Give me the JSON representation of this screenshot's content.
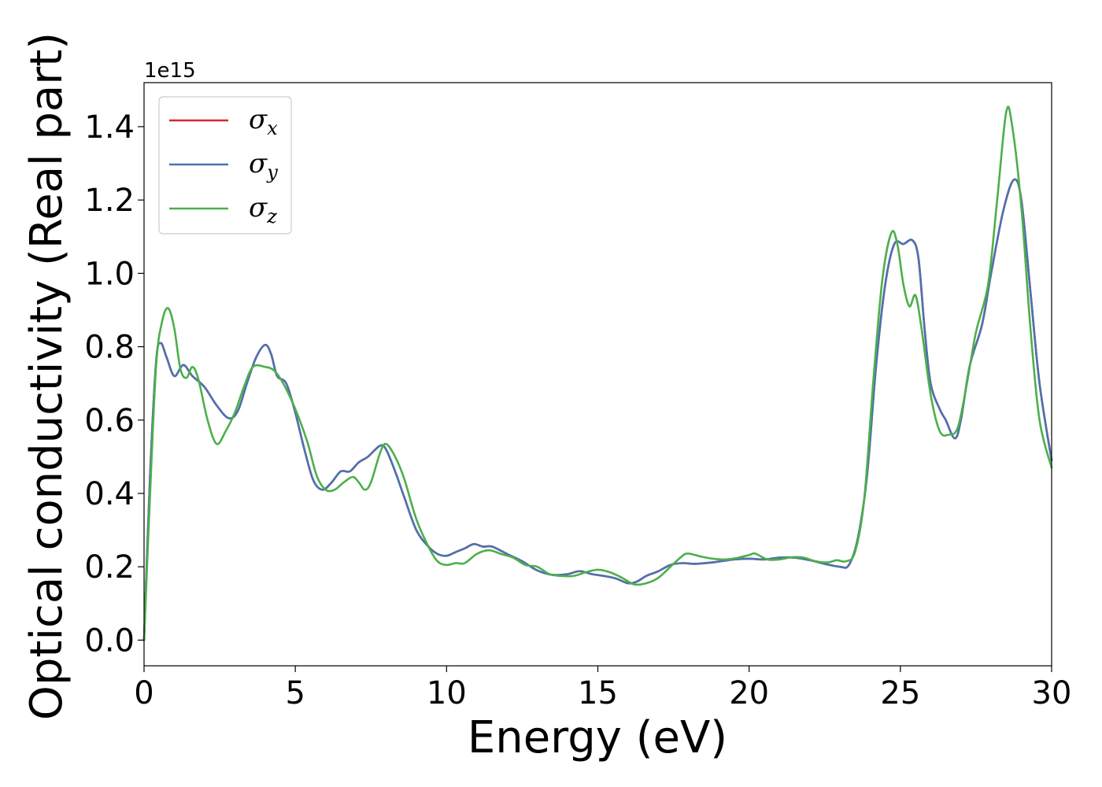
{
  "chart_data": {
    "type": "line",
    "xlabel": "Energy (eV)",
    "ylabel": "Optical conductivity (Real part)",
    "y_offset_label": "1e15",
    "xlim": [
      0,
      30
    ],
    "ylim": [
      -0.07,
      1.52
    ],
    "x_ticks": [
      0,
      5,
      10,
      15,
      20,
      25,
      30
    ],
    "x_tick_labels": [
      "0",
      "5",
      "10",
      "15",
      "20",
      "25",
      "30"
    ],
    "y_ticks": [
      0.0,
      0.2,
      0.4,
      0.6,
      0.8,
      1.0,
      1.2,
      1.4
    ],
    "y_tick_labels": [
      "0.0",
      "0.2",
      "0.4",
      "0.6",
      "0.8",
      "1.0",
      "1.2",
      "1.4"
    ],
    "grid": false,
    "legend_position": "top-left",
    "series": [
      {
        "name": "σ",
        "subscript": "x",
        "color": "#d62728",
        "points": [
          [
            0,
            0.0
          ],
          [
            0.2,
            0.45
          ],
          [
            0.4,
            0.76
          ],
          [
            0.55,
            0.81
          ],
          [
            0.75,
            0.77
          ],
          [
            1.0,
            0.72
          ],
          [
            1.3,
            0.75
          ],
          [
            1.6,
            0.72
          ],
          [
            2.0,
            0.69
          ],
          [
            2.4,
            0.64
          ],
          [
            2.8,
            0.605
          ],
          [
            3.1,
            0.625
          ],
          [
            3.4,
            0.7
          ],
          [
            3.7,
            0.77
          ],
          [
            4.0,
            0.805
          ],
          [
            4.2,
            0.78
          ],
          [
            4.4,
            0.72
          ],
          [
            4.7,
            0.7
          ],
          [
            5.0,
            0.62
          ],
          [
            5.3,
            0.52
          ],
          [
            5.6,
            0.435
          ],
          [
            5.9,
            0.41
          ],
          [
            6.2,
            0.43
          ],
          [
            6.5,
            0.46
          ],
          [
            6.8,
            0.46
          ],
          [
            7.1,
            0.485
          ],
          [
            7.4,
            0.5
          ],
          [
            7.8,
            0.53
          ],
          [
            8.0,
            0.52
          ],
          [
            8.3,
            0.46
          ],
          [
            8.6,
            0.39
          ],
          [
            9.0,
            0.3
          ],
          [
            9.4,
            0.255
          ],
          [
            9.7,
            0.235
          ],
          [
            10.0,
            0.23
          ],
          [
            10.3,
            0.24
          ],
          [
            10.6,
            0.25
          ],
          [
            10.9,
            0.262
          ],
          [
            11.2,
            0.255
          ],
          [
            11.5,
            0.255
          ],
          [
            12.0,
            0.235
          ],
          [
            12.5,
            0.215
          ],
          [
            13.0,
            0.19
          ],
          [
            13.5,
            0.178
          ],
          [
            14.0,
            0.18
          ],
          [
            14.4,
            0.188
          ],
          [
            14.8,
            0.18
          ],
          [
            15.2,
            0.175
          ],
          [
            15.6,
            0.168
          ],
          [
            16.0,
            0.155
          ],
          [
            16.3,
            0.16
          ],
          [
            16.6,
            0.175
          ],
          [
            17.0,
            0.188
          ],
          [
            17.4,
            0.205
          ],
          [
            17.8,
            0.21
          ],
          [
            18.2,
            0.208
          ],
          [
            18.8,
            0.212
          ],
          [
            19.5,
            0.22
          ],
          [
            20.0,
            0.222
          ],
          [
            20.5,
            0.22
          ],
          [
            21.0,
            0.225
          ],
          [
            21.5,
            0.225
          ],
          [
            22.0,
            0.218
          ],
          [
            22.5,
            0.208
          ],
          [
            23.0,
            0.2
          ],
          [
            23.3,
            0.205
          ],
          [
            23.6,
            0.28
          ],
          [
            23.9,
            0.45
          ],
          [
            24.2,
            0.75
          ],
          [
            24.5,
            0.97
          ],
          [
            24.8,
            1.08
          ],
          [
            25.1,
            1.08
          ],
          [
            25.4,
            1.09
          ],
          [
            25.6,
            1.04
          ],
          [
            25.8,
            0.85
          ],
          [
            26.0,
            0.7
          ],
          [
            26.3,
            0.63
          ],
          [
            26.5,
            0.6
          ],
          [
            26.8,
            0.55
          ],
          [
            27.0,
            0.6
          ],
          [
            27.3,
            0.75
          ],
          [
            27.7,
            0.86
          ],
          [
            28.0,
            1.0
          ],
          [
            28.4,
            1.17
          ],
          [
            28.75,
            1.255
          ],
          [
            29.0,
            1.2
          ],
          [
            29.3,
            0.95
          ],
          [
            29.6,
            0.7
          ],
          [
            30.0,
            0.49
          ]
        ]
      },
      {
        "name": "σ",
        "subscript": "y",
        "color": "#4c72b0",
        "points": [
          [
            0,
            0.0
          ],
          [
            0.2,
            0.45
          ],
          [
            0.4,
            0.76
          ],
          [
            0.55,
            0.81
          ],
          [
            0.75,
            0.77
          ],
          [
            1.0,
            0.72
          ],
          [
            1.3,
            0.75
          ],
          [
            1.6,
            0.72
          ],
          [
            2.0,
            0.69
          ],
          [
            2.4,
            0.64
          ],
          [
            2.8,
            0.605
          ],
          [
            3.1,
            0.625
          ],
          [
            3.4,
            0.7
          ],
          [
            3.7,
            0.77
          ],
          [
            4.0,
            0.805
          ],
          [
            4.2,
            0.78
          ],
          [
            4.4,
            0.72
          ],
          [
            4.7,
            0.7
          ],
          [
            5.0,
            0.62
          ],
          [
            5.3,
            0.52
          ],
          [
            5.6,
            0.435
          ],
          [
            5.9,
            0.41
          ],
          [
            6.2,
            0.43
          ],
          [
            6.5,
            0.46
          ],
          [
            6.8,
            0.46
          ],
          [
            7.1,
            0.485
          ],
          [
            7.4,
            0.5
          ],
          [
            7.8,
            0.53
          ],
          [
            8.0,
            0.52
          ],
          [
            8.3,
            0.46
          ],
          [
            8.6,
            0.39
          ],
          [
            9.0,
            0.3
          ],
          [
            9.4,
            0.255
          ],
          [
            9.7,
            0.235
          ],
          [
            10.0,
            0.23
          ],
          [
            10.3,
            0.24
          ],
          [
            10.6,
            0.25
          ],
          [
            10.9,
            0.262
          ],
          [
            11.2,
            0.255
          ],
          [
            11.5,
            0.255
          ],
          [
            12.0,
            0.235
          ],
          [
            12.5,
            0.215
          ],
          [
            13.0,
            0.19
          ],
          [
            13.5,
            0.178
          ],
          [
            14.0,
            0.18
          ],
          [
            14.4,
            0.188
          ],
          [
            14.8,
            0.18
          ],
          [
            15.2,
            0.175
          ],
          [
            15.6,
            0.168
          ],
          [
            16.0,
            0.155
          ],
          [
            16.3,
            0.16
          ],
          [
            16.6,
            0.175
          ],
          [
            17.0,
            0.188
          ],
          [
            17.4,
            0.205
          ],
          [
            17.8,
            0.21
          ],
          [
            18.2,
            0.208
          ],
          [
            18.8,
            0.212
          ],
          [
            19.5,
            0.22
          ],
          [
            20.0,
            0.222
          ],
          [
            20.5,
            0.22
          ],
          [
            21.0,
            0.225
          ],
          [
            21.5,
            0.225
          ],
          [
            22.0,
            0.218
          ],
          [
            22.5,
            0.208
          ],
          [
            23.0,
            0.2
          ],
          [
            23.3,
            0.205
          ],
          [
            23.6,
            0.28
          ],
          [
            23.9,
            0.45
          ],
          [
            24.2,
            0.75
          ],
          [
            24.5,
            0.97
          ],
          [
            24.8,
            1.08
          ],
          [
            25.1,
            1.08
          ],
          [
            25.4,
            1.09
          ],
          [
            25.6,
            1.04
          ],
          [
            25.8,
            0.85
          ],
          [
            26.0,
            0.7
          ],
          [
            26.3,
            0.63
          ],
          [
            26.5,
            0.6
          ],
          [
            26.8,
            0.55
          ],
          [
            27.0,
            0.6
          ],
          [
            27.3,
            0.75
          ],
          [
            27.7,
            0.86
          ],
          [
            28.0,
            1.0
          ],
          [
            28.4,
            1.17
          ],
          [
            28.75,
            1.255
          ],
          [
            29.0,
            1.2
          ],
          [
            29.3,
            0.95
          ],
          [
            29.6,
            0.7
          ],
          [
            30.0,
            0.49
          ]
        ]
      },
      {
        "name": "σ",
        "subscript": "z",
        "color": "#4daf4a",
        "points": [
          [
            0,
            0.0
          ],
          [
            0.2,
            0.4
          ],
          [
            0.4,
            0.75
          ],
          [
            0.6,
            0.87
          ],
          [
            0.8,
            0.905
          ],
          [
            1.0,
            0.85
          ],
          [
            1.2,
            0.74
          ],
          [
            1.4,
            0.715
          ],
          [
            1.6,
            0.745
          ],
          [
            1.8,
            0.71
          ],
          [
            2.1,
            0.6
          ],
          [
            2.4,
            0.535
          ],
          [
            2.7,
            0.57
          ],
          [
            3.0,
            0.62
          ],
          [
            3.3,
            0.69
          ],
          [
            3.6,
            0.745
          ],
          [
            4.0,
            0.745
          ],
          [
            4.3,
            0.735
          ],
          [
            4.6,
            0.7
          ],
          [
            5.0,
            0.63
          ],
          [
            5.4,
            0.54
          ],
          [
            5.7,
            0.45
          ],
          [
            6.0,
            0.41
          ],
          [
            6.3,
            0.41
          ],
          [
            6.6,
            0.43
          ],
          [
            6.9,
            0.445
          ],
          [
            7.1,
            0.43
          ],
          [
            7.3,
            0.41
          ],
          [
            7.5,
            0.43
          ],
          [
            7.8,
            0.51
          ],
          [
            8.0,
            0.535
          ],
          [
            8.3,
            0.5
          ],
          [
            8.6,
            0.44
          ],
          [
            9.0,
            0.33
          ],
          [
            9.4,
            0.255
          ],
          [
            9.7,
            0.215
          ],
          [
            10.0,
            0.205
          ],
          [
            10.3,
            0.21
          ],
          [
            10.6,
            0.21
          ],
          [
            11.0,
            0.235
          ],
          [
            11.4,
            0.245
          ],
          [
            11.8,
            0.235
          ],
          [
            12.2,
            0.225
          ],
          [
            12.6,
            0.205
          ],
          [
            13.0,
            0.2
          ],
          [
            13.4,
            0.18
          ],
          [
            13.8,
            0.175
          ],
          [
            14.2,
            0.175
          ],
          [
            14.6,
            0.185
          ],
          [
            15.0,
            0.192
          ],
          [
            15.4,
            0.185
          ],
          [
            15.8,
            0.17
          ],
          [
            16.2,
            0.152
          ],
          [
            16.6,
            0.155
          ],
          [
            17.0,
            0.17
          ],
          [
            17.4,
            0.2
          ],
          [
            17.8,
            0.23
          ],
          [
            18.0,
            0.236
          ],
          [
            18.4,
            0.228
          ],
          [
            18.8,
            0.222
          ],
          [
            19.2,
            0.22
          ],
          [
            19.6,
            0.224
          ],
          [
            20.0,
            0.232
          ],
          [
            20.2,
            0.236
          ],
          [
            20.6,
            0.22
          ],
          [
            21.0,
            0.22
          ],
          [
            21.4,
            0.226
          ],
          [
            21.8,
            0.225
          ],
          [
            22.2,
            0.215
          ],
          [
            22.6,
            0.212
          ],
          [
            22.9,
            0.218
          ],
          [
            23.2,
            0.215
          ],
          [
            23.5,
            0.24
          ],
          [
            23.8,
            0.38
          ],
          [
            24.1,
            0.7
          ],
          [
            24.4,
            0.98
          ],
          [
            24.7,
            1.11
          ],
          [
            24.9,
            1.08
          ],
          [
            25.1,
            0.97
          ],
          [
            25.3,
            0.91
          ],
          [
            25.5,
            0.94
          ],
          [
            25.7,
            0.85
          ],
          [
            26.0,
            0.67
          ],
          [
            26.3,
            0.57
          ],
          [
            26.6,
            0.56
          ],
          [
            26.9,
            0.58
          ],
          [
            27.2,
            0.7
          ],
          [
            27.5,
            0.84
          ],
          [
            27.9,
            0.97
          ],
          [
            28.2,
            1.2
          ],
          [
            28.5,
            1.44
          ],
          [
            28.7,
            1.4
          ],
          [
            29.0,
            1.18
          ],
          [
            29.3,
            0.85
          ],
          [
            29.6,
            0.6
          ],
          [
            30.0,
            0.47
          ]
        ]
      }
    ]
  }
}
